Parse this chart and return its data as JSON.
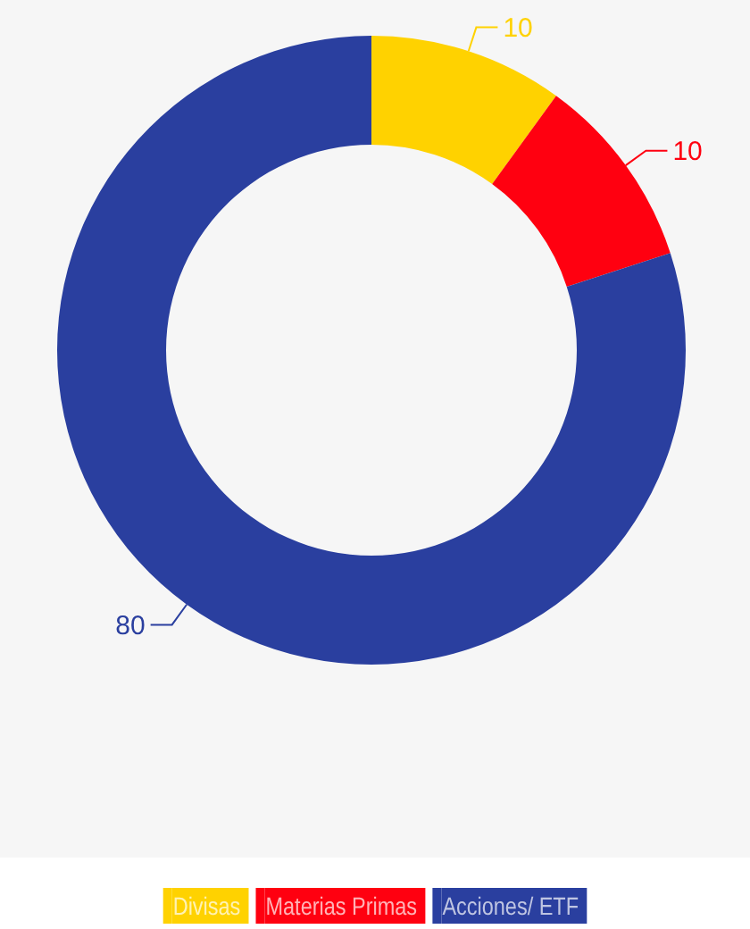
{
  "chart_data": {
    "type": "donut",
    "categories": [
      "Divisas",
      "Materias Primas",
      "Acciones/ ETF"
    ],
    "values": [
      10,
      10,
      80
    ],
    "colors": [
      "#ffd200",
      "#ff0010",
      "#2a3f9f"
    ],
    "data_labels": true,
    "legend": "bottom"
  }
}
